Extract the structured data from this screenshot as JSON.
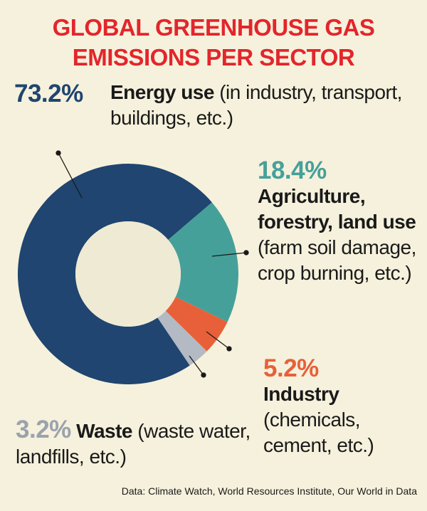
{
  "chart_data": {
    "type": "donut",
    "title": "GLOBAL GREENHOUSE GAS EMISSIONS PER SECTOR",
    "categories": [
      "Energy use",
      "Agriculture, forestry, land use",
      "Industry",
      "Waste"
    ],
    "descriptions": [
      "(in industry, transport, buildings, etc.)",
      "(farm soil damage, crop burning, etc.)",
      "(chemicals, cement, etc.)",
      "(waste water, landfills, etc.)"
    ],
    "values": [
      73.2,
      18.4,
      5.2,
      3.2
    ],
    "value_labels": [
      "73.2%",
      "18.4%",
      "5.2%",
      "3.2%"
    ],
    "colors": [
      "#1f4570",
      "#46a09a",
      "#e8603a",
      "#b3bac4"
    ],
    "source": "Data: Climate Watch, World Resources Institute, Our World in Data"
  }
}
